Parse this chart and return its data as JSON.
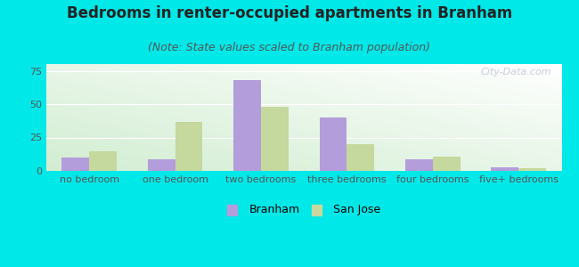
{
  "title": "Bedrooms in renter-occupied apartments in Branham",
  "subtitle": "(Note: State values scaled to Branham population)",
  "categories": [
    "no bedroom",
    "one bedroom",
    "two bedrooms",
    "three bedrooms",
    "four bedrooms",
    "five+ bedrooms"
  ],
  "branham_values": [
    10,
    9,
    68,
    40,
    9,
    3
  ],
  "sanjose_values": [
    15,
    37,
    48,
    20,
    11,
    2
  ],
  "branham_color": "#b39ddb",
  "sanjose_color": "#c5d89d",
  "background_color": "#00e8e8",
  "plot_bg_top_left": "#e8f5e9",
  "plot_bg_top_right": "#f5fbfb",
  "plot_bg_bottom_left": "#d4ecd4",
  "plot_bg_bottom_right": "#eaf7f7",
  "ylim": [
    0,
    80
  ],
  "yticks": [
    0,
    25,
    50,
    75
  ],
  "bar_width": 0.32,
  "title_fontsize": 12,
  "subtitle_fontsize": 9,
  "tick_fontsize": 8,
  "legend_fontsize": 9,
  "watermark": "City-Data.com"
}
